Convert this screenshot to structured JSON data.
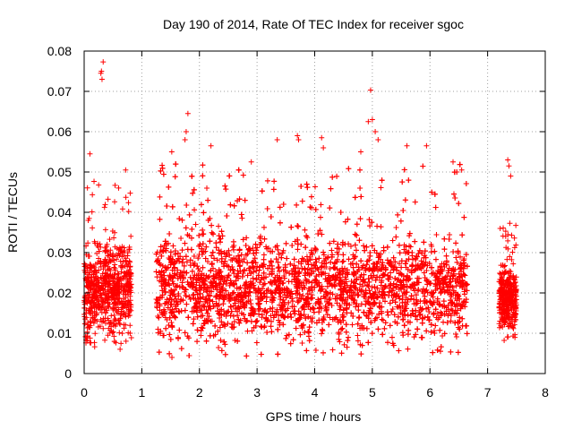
{
  "chart_data": {
    "type": "scatter",
    "title": "Day 190 of 2014, Rate Of TEC Index for receiver sgoc",
    "xlabel": "GPS time / hours",
    "ylabel": "ROTI / TECUs",
    "xlim": [
      0,
      8
    ],
    "ylim": [
      0,
      0.08
    ],
    "xticks": [
      0,
      1,
      2,
      3,
      4,
      5,
      6,
      7,
      8
    ],
    "xtick_labels": [
      "0",
      "1",
      "2",
      "3",
      "4",
      "5",
      "6",
      "7",
      "8"
    ],
    "yticks": [
      0,
      0.01,
      0.02,
      0.03,
      0.04,
      0.05,
      0.06,
      0.07,
      0.08
    ],
    "ytick_labels": [
      "0",
      "0.01",
      "0.02",
      "0.03",
      "0.04",
      "0.05",
      "0.06",
      "0.07",
      "0.08"
    ],
    "grid": true,
    "marker": "plus",
    "color": "#ff0000",
    "segments": [
      {
        "x_start": 0.0,
        "x_end": 0.82,
        "y_min": 0.006,
        "y_max": 0.048,
        "density": 700
      },
      {
        "x_start": 1.25,
        "x_end": 6.65,
        "y_min": 0.004,
        "y_max": 0.052,
        "density": 5200
      },
      {
        "x_start": 7.2,
        "x_end": 7.5,
        "y_min": 0.008,
        "y_max": 0.038,
        "density": 380
      }
    ],
    "notable_points": [
      {
        "x": 0.3,
        "y": 0.075
      },
      {
        "x": 0.33,
        "y": 0.0773
      },
      {
        "x": 0.31,
        "y": 0.073
      },
      {
        "x": 0.29,
        "y": 0.0745
      },
      {
        "x": 1.8,
        "y": 0.0645
      },
      {
        "x": 1.77,
        "y": 0.06
      },
      {
        "x": 1.75,
        "y": 0.058
      },
      {
        "x": 4.97,
        "y": 0.0703
      },
      {
        "x": 5.0,
        "y": 0.063
      },
      {
        "x": 4.93,
        "y": 0.0625
      },
      {
        "x": 5.05,
        "y": 0.06
      },
      {
        "x": 5.1,
        "y": 0.058
      },
      {
        "x": 4.8,
        "y": 0.055
      },
      {
        "x": 3.7,
        "y": 0.059
      },
      {
        "x": 3.72,
        "y": 0.058
      },
      {
        "x": 4.12,
        "y": 0.0585
      },
      {
        "x": 4.15,
        "y": 0.056
      },
      {
        "x": 3.35,
        "y": 0.058
      },
      {
        "x": 5.94,
        "y": 0.0565
      },
      {
        "x": 5.6,
        "y": 0.0565
      },
      {
        "x": 2.2,
        "y": 0.0565
      },
      {
        "x": 0.1,
        "y": 0.0545
      },
      {
        "x": 1.52,
        "y": 0.055
      },
      {
        "x": 7.35,
        "y": 0.053
      },
      {
        "x": 7.37,
        "y": 0.0515
      },
      {
        "x": 7.4,
        "y": 0.049
      },
      {
        "x": 6.4,
        "y": 0.0525
      },
      {
        "x": 6.55,
        "y": 0.0505
      },
      {
        "x": 2.9,
        "y": 0.0525
      },
      {
        "x": 0.72,
        "y": 0.0505
      }
    ]
  }
}
